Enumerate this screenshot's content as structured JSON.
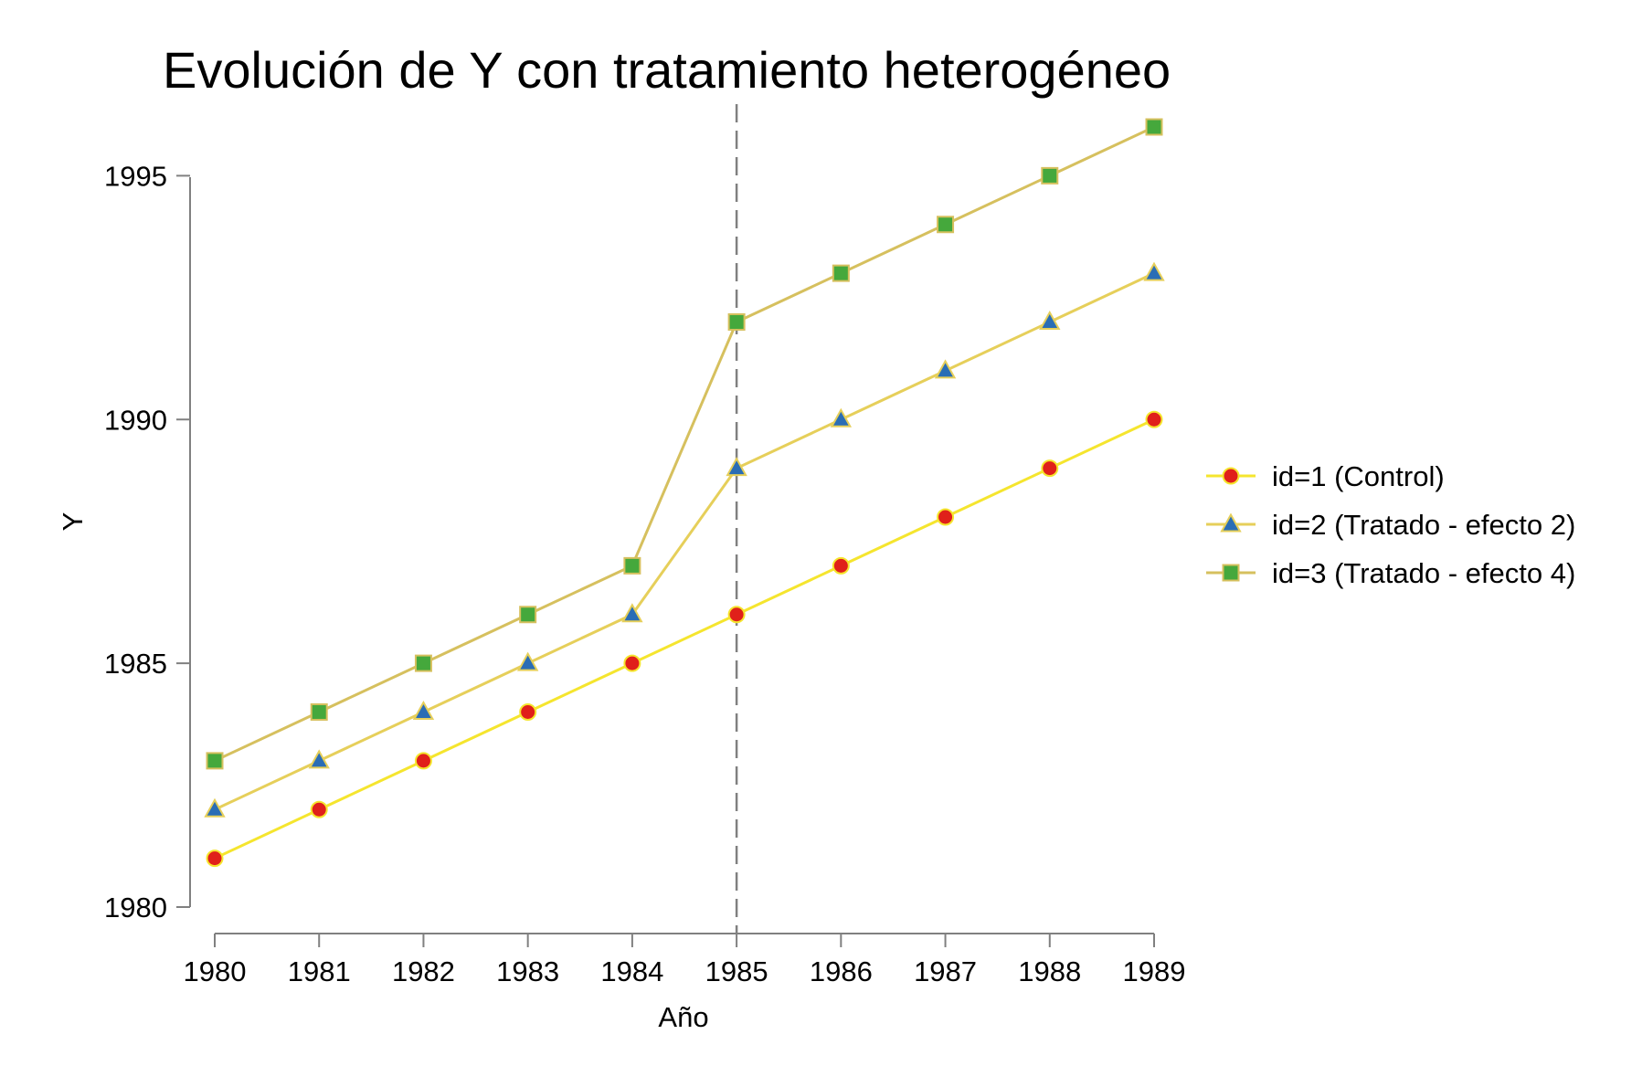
{
  "chart_data": {
    "type": "line",
    "title": "Evolución de Y con tratamiento heterogéneo",
    "xlabel": "Año",
    "ylabel": "Y",
    "x": [
      1980,
      1981,
      1982,
      1983,
      1984,
      1985,
      1986,
      1987,
      1988,
      1989
    ],
    "xticks": [
      "1980",
      "1981",
      "1982",
      "1983",
      "1984",
      "1985",
      "1986",
      "1987",
      "1988",
      "1989"
    ],
    "xlim": [
      1980,
      1989
    ],
    "ylim": [
      1980,
      1996
    ],
    "yticks": [
      "1980",
      "1985",
      "1990",
      "1995"
    ],
    "grid": false,
    "legend_position": "right",
    "reference_line": {
      "x": 1985,
      "style": "dashed",
      "color": "#808080"
    },
    "series": [
      {
        "name": "id=1 (Control)",
        "values": [
          1981,
          1982,
          1983,
          1984,
          1985,
          1986,
          1987,
          1988,
          1989,
          1990
        ],
        "marker": "circle",
        "line_color": "#f5e52e",
        "marker_fill": "#e0201a",
        "marker_edge": "#f5e52e"
      },
      {
        "name": "id=2 (Tratado - efecto 2)",
        "values": [
          1982,
          1983,
          1984,
          1985,
          1986,
          1989,
          1990,
          1991,
          1992,
          1993
        ],
        "marker": "triangle",
        "line_color": "#e6cf5a",
        "marker_fill": "#2a6db5",
        "marker_edge": "#e6cf5a"
      },
      {
        "name": "id=3 (Tratado - efecto 4)",
        "values": [
          1983,
          1984,
          1985,
          1986,
          1987,
          1992,
          1993,
          1994,
          1995,
          1996
        ],
        "marker": "square",
        "line_color": "#d6c05e",
        "marker_fill": "#45a83c",
        "marker_edge": "#d6c05e"
      }
    ]
  }
}
